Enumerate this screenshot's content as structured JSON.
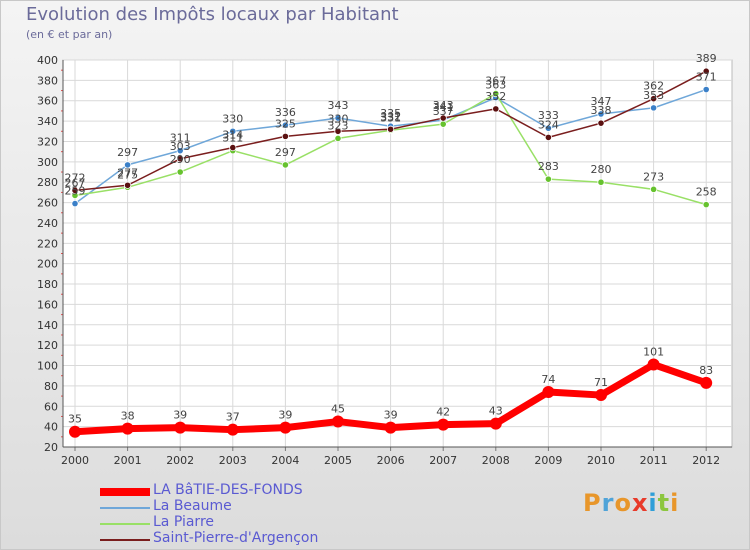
{
  "title": "Evolution des Impôts locaux par Habitant",
  "subtitle": "(en € et par an)",
  "logo": {
    "text": "Proxiti",
    "colors": [
      "#e8962a",
      "#4fa3d8",
      "#e8962a",
      "#e83a2a",
      "#2f9fd8",
      "#8cc63f",
      "#e8962a"
    ]
  },
  "chart_data": {
    "type": "line",
    "title": "Evolution des Impôts locaux par Habitant",
    "ylabel": "(en € et par an)",
    "x": [
      "2000",
      "2001",
      "2002",
      "2003",
      "2004",
      "2005",
      "2006",
      "2007",
      "2008",
      "2009",
      "2010",
      "2011",
      "2012"
    ],
    "ylim": [
      20,
      400
    ],
    "yticks": [
      20,
      40,
      60,
      80,
      100,
      120,
      140,
      160,
      180,
      200,
      220,
      240,
      260,
      280,
      300,
      320,
      340,
      360,
      380,
      400
    ],
    "series": [
      {
        "name": "LA BâTIE-DES-FONDS",
        "color": "#ff0000",
        "width": 7,
        "marker": 6,
        "values": [
          35,
          38,
          39,
          37,
          39,
          45,
          39,
          42,
          43,
          74,
          71,
          101,
          83
        ]
      },
      {
        "name": "La Beaume",
        "color": "#6fa7d9",
        "width": 1.5,
        "marker": 3.2,
        "marker_color": "#3b80c8",
        "values": [
          259,
          297,
          311,
          330,
          336,
          343,
          335,
          341,
          363,
          333,
          347,
          353,
          371
        ]
      },
      {
        "name": "La Piarre",
        "color": "#99e066",
        "width": 1.5,
        "marker": 3.2,
        "marker_color": "#66c22e",
        "values": [
          267,
          275,
          290,
          311,
          297,
          323,
          331,
          337,
          367,
          283,
          280,
          273,
          258
        ]
      },
      {
        "name": "Saint-Pierre-d'Argençon",
        "color": "#7a1e1e",
        "width": 1.5,
        "marker": 3.2,
        "marker_color": "#5a1010",
        "values": [
          272,
          277,
          303,
          314,
          325,
          330,
          332,
          343,
          352,
          324,
          338,
          362,
          389
        ]
      }
    ],
    "data_labels": [
      {
        "series": 0,
        "labels": [
          "35",
          "38",
          "39",
          "37",
          "39",
          "45",
          "39",
          "42",
          "43",
          "74",
          "71",
          "101",
          "83"
        ]
      },
      {
        "series": 1,
        "labels": [
          "259",
          "297",
          "311",
          "330",
          "336",
          "343",
          "335",
          "341",
          "363",
          "333",
          "347",
          "353",
          "371"
        ]
      },
      {
        "series": 2,
        "labels": [
          "267",
          "275",
          "290",
          "311",
          "297",
          "323",
          "331",
          "337",
          "367",
          "283",
          "280",
          "273",
          "258"
        ]
      },
      {
        "series": 3,
        "labels": [
          "272",
          "277",
          "303",
          "314",
          "325",
          "330",
          "332",
          "343",
          "352",
          "324",
          "338",
          "362",
          "389"
        ]
      }
    ],
    "grid": true,
    "legend": "bottom-left"
  }
}
